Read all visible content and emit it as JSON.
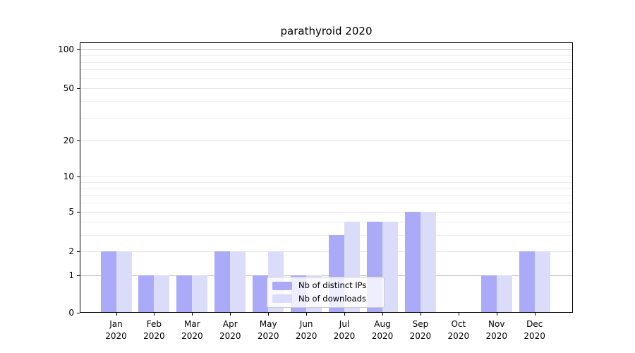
{
  "chart_data": {
    "type": "bar",
    "title": "parathyroid 2020",
    "categories": [
      "Jan",
      "Feb",
      "Mar",
      "Apr",
      "May",
      "Jun",
      "Jul",
      "Aug",
      "Sep",
      "Oct",
      "Nov",
      "Dec"
    ],
    "year_label": "2020",
    "series": [
      {
        "name": "Nb of distinct IPs",
        "color": "#aaaaf8",
        "values": [
          2,
          1,
          1,
          2,
          1,
          1,
          3,
          4,
          5,
          0,
          1,
          2
        ]
      },
      {
        "name": "Nb of downloads",
        "color": "#dbdbfa",
        "values": [
          2,
          1,
          1,
          2,
          2,
          1,
          4,
          4,
          5,
          0,
          1,
          2
        ]
      }
    ],
    "yticks": [
      0,
      1,
      2,
      5,
      10,
      20,
      50,
      100
    ],
    "yticks_minor": [
      3,
      4,
      6,
      7,
      8,
      9,
      30,
      40,
      60,
      70,
      80,
      90
    ],
    "emphasized_gridlines": [
      1,
      100
    ],
    "ylim": [
      0,
      113
    ],
    "scale": "log10(1+v)",
    "grid": "horizontal-only",
    "legend_position": "lower-center",
    "bar_colors": {
      "distinct_ips": "#aaaaf8",
      "downloads": "#dbdbfa"
    },
    "gridline_colors": {
      "strong": "#c3c3c3",
      "major": "#e2e2e2",
      "minor": "#eeeeee"
    }
  }
}
